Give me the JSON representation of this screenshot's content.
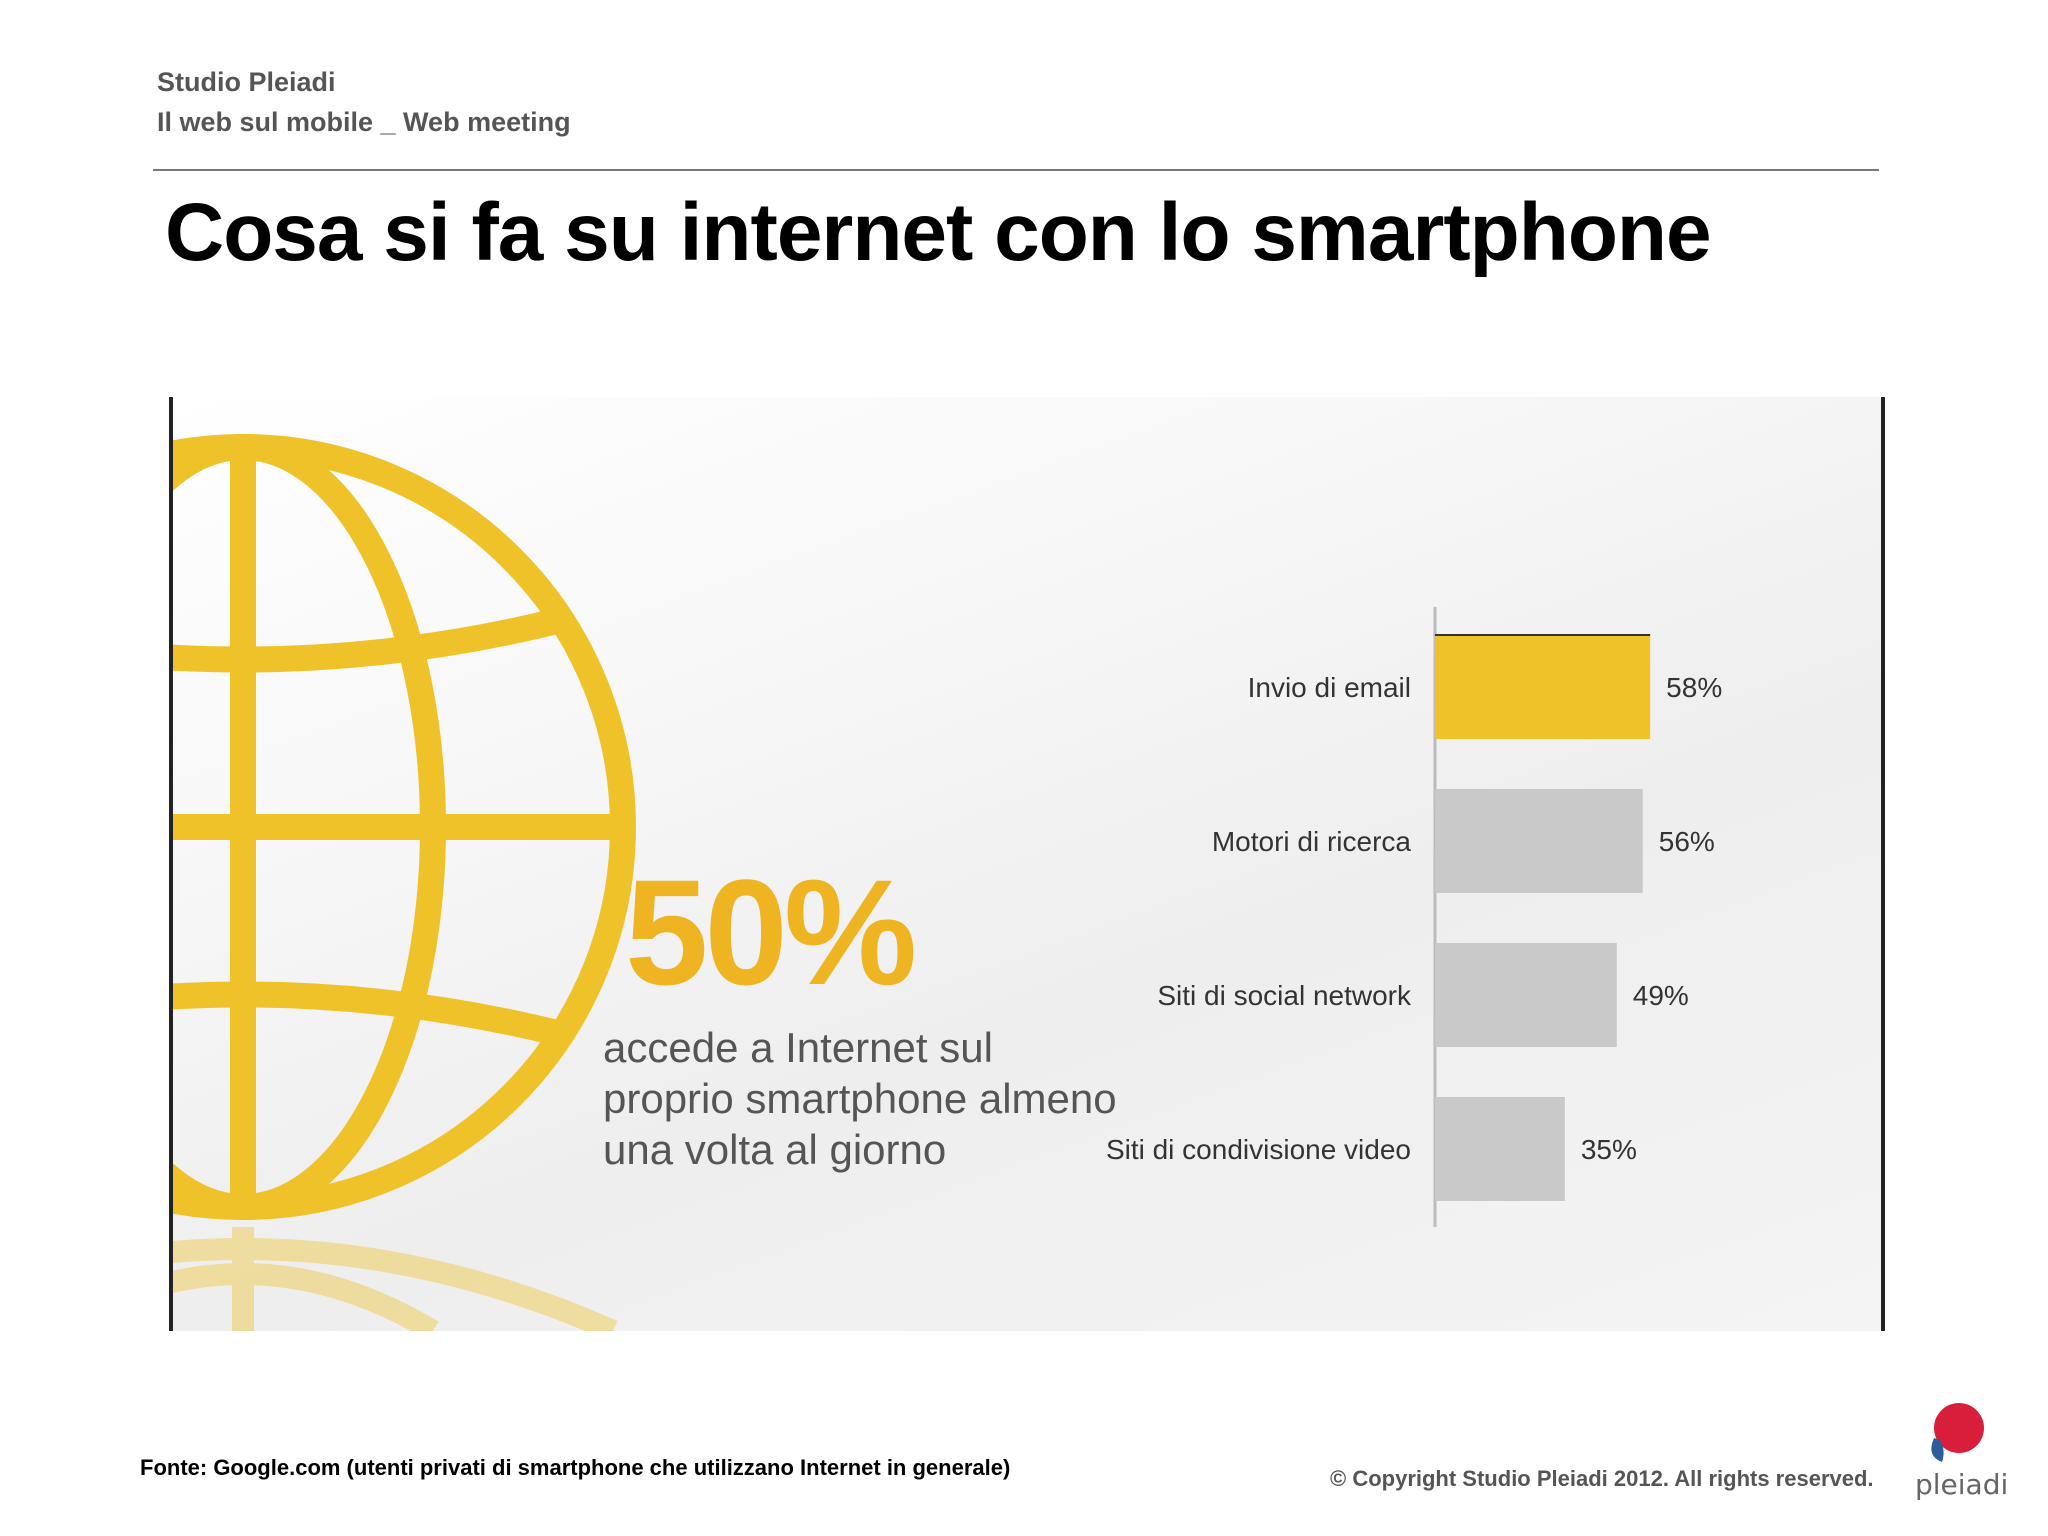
{
  "header": {
    "company": "Studio Pleiadi",
    "subtitle": "Il web sul mobile _ Web meeting"
  },
  "slide": {
    "title": "Cosa si fa su internet con lo smartphone"
  },
  "infographic": {
    "stat_value": "50%",
    "stat_caption": "accede a Internet sul proprio smartphone almeno una volta al giorno",
    "globe_icon": "globe-icon",
    "accent_color": "#f0c22a"
  },
  "chart_data": {
    "type": "bar",
    "orientation": "horizontal",
    "categories": [
      "Invio di email",
      "Motori di ricerca",
      "Siti di social network",
      "Siti di condivisione video"
    ],
    "values": [
      58,
      56,
      49,
      35
    ],
    "value_labels": [
      "58%",
      "56%",
      "49%",
      "35%"
    ],
    "highlight_color": "#f0c22a",
    "bar_color": "#c9c9c9",
    "xlim": [
      0,
      100
    ],
    "grid": false,
    "legend": "none"
  },
  "footer": {
    "source": "Fonte: Google.com (utenti privati di smartphone che utilizzano Internet in generale)",
    "copyright": "© Copyright Studio Pleiadi 2012. All rights reserved.",
    "logo_text": "pleiadi"
  }
}
